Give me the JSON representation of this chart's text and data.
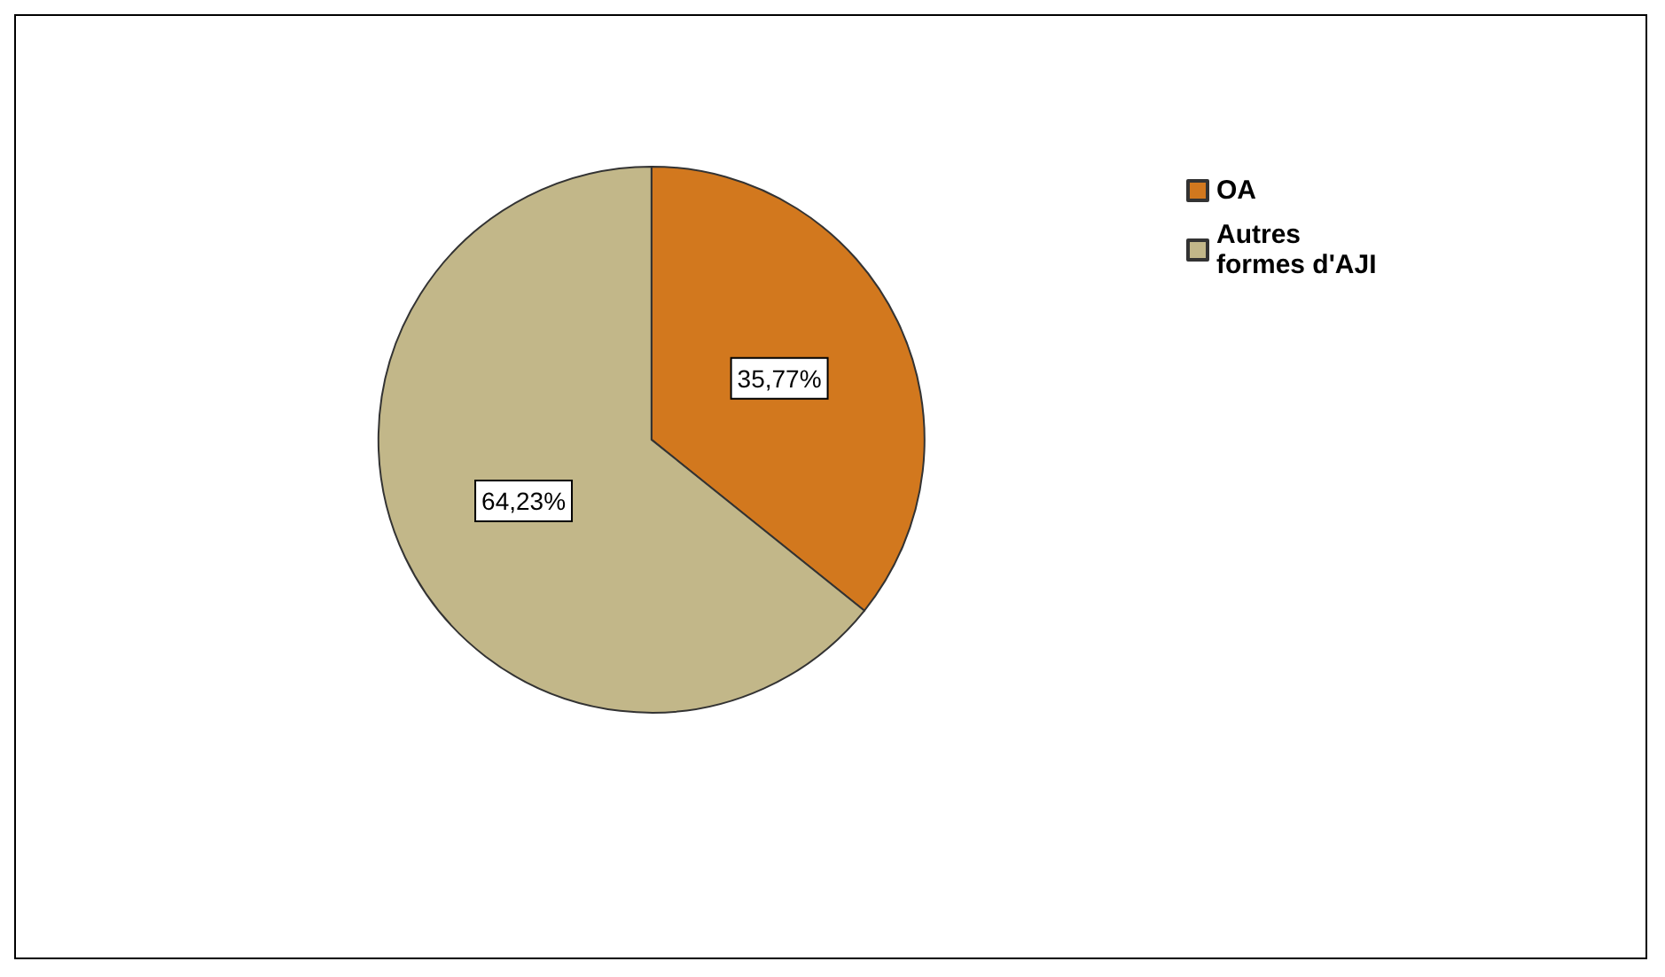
{
  "chart_data": {
    "type": "pie",
    "categories": [
      "OA",
      "Autres formes d'AJI"
    ],
    "values": [
      35.77,
      64.23
    ],
    "colors": [
      "#d2781e",
      "#c2b789"
    ],
    "value_labels": [
      "35,77%",
      "64,23%"
    ],
    "legend": "top right"
  }
}
